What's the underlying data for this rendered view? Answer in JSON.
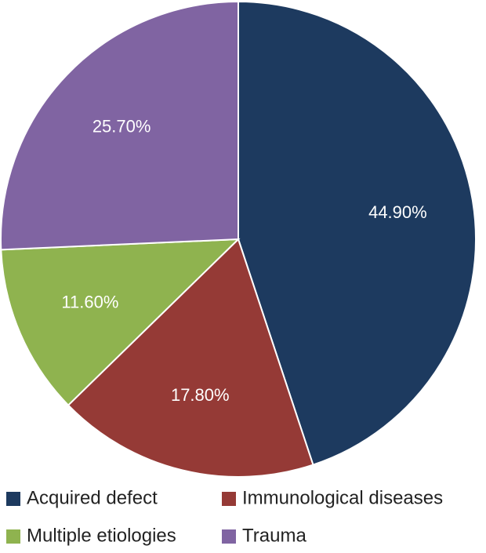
{
  "chart_data": {
    "type": "pie",
    "categories": [
      "Acquired defect",
      "Immunological diseases",
      "Multiple etiologies",
      "Trauma"
    ],
    "values": [
      44.9,
      17.8,
      11.6,
      25.7
    ],
    "value_labels": [
      "44.90%",
      "17.80%",
      "11.60%",
      "25.70%"
    ],
    "colors": [
      "#1d3a5f",
      "#953a36",
      "#8fb34f",
      "#8064a2"
    ],
    "legend": "bottom"
  }
}
